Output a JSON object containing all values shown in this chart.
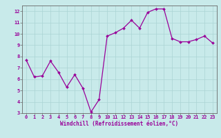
{
  "x": [
    0,
    1,
    2,
    3,
    4,
    5,
    6,
    7,
    8,
    9,
    10,
    11,
    12,
    13,
    14,
    15,
    16,
    17,
    18,
    19,
    20,
    21,
    22,
    23
  ],
  "y": [
    7.7,
    6.2,
    6.3,
    7.6,
    6.6,
    5.3,
    6.4,
    5.2,
    3.1,
    4.2,
    9.8,
    10.1,
    10.5,
    11.2,
    10.5,
    11.9,
    12.2,
    12.2,
    9.6,
    9.3,
    9.3,
    9.5,
    9.8,
    9.2
  ],
  "line_color": "#990099",
  "marker": "D",
  "marker_size": 2.0,
  "linewidth": 0.9,
  "background_color": "#c8eaea",
  "grid_color": "#aad4d4",
  "xlabel": "Windchill (Refroidissement éolien,°C)",
  "xlabel_color": "#990099",
  "tick_color": "#990099",
  "ylim": [
    3,
    12.5
  ],
  "xlim": [
    -0.5,
    23.5
  ],
  "yticks": [
    3,
    4,
    5,
    6,
    7,
    8,
    9,
    10,
    11,
    12
  ],
  "xticks": [
    0,
    1,
    2,
    3,
    4,
    5,
    6,
    7,
    8,
    9,
    10,
    11,
    12,
    13,
    14,
    15,
    16,
    17,
    18,
    19,
    20,
    21,
    22,
    23
  ],
  "xtick_labels": [
    "0",
    "1",
    "2",
    "3",
    "4",
    "5",
    "6",
    "7",
    "8",
    "9",
    "10",
    "11",
    "12",
    "13",
    "14",
    "15",
    "16",
    "17",
    "18",
    "19",
    "20",
    "21",
    "22",
    "23"
  ],
  "ytick_labels": [
    "3",
    "4",
    "5",
    "6",
    "7",
    "8",
    "9",
    "10",
    "11",
    "12"
  ],
  "spine_color": "#666666",
  "xlabel_fontsize": 5.5,
  "tick_fontsize": 5.0
}
